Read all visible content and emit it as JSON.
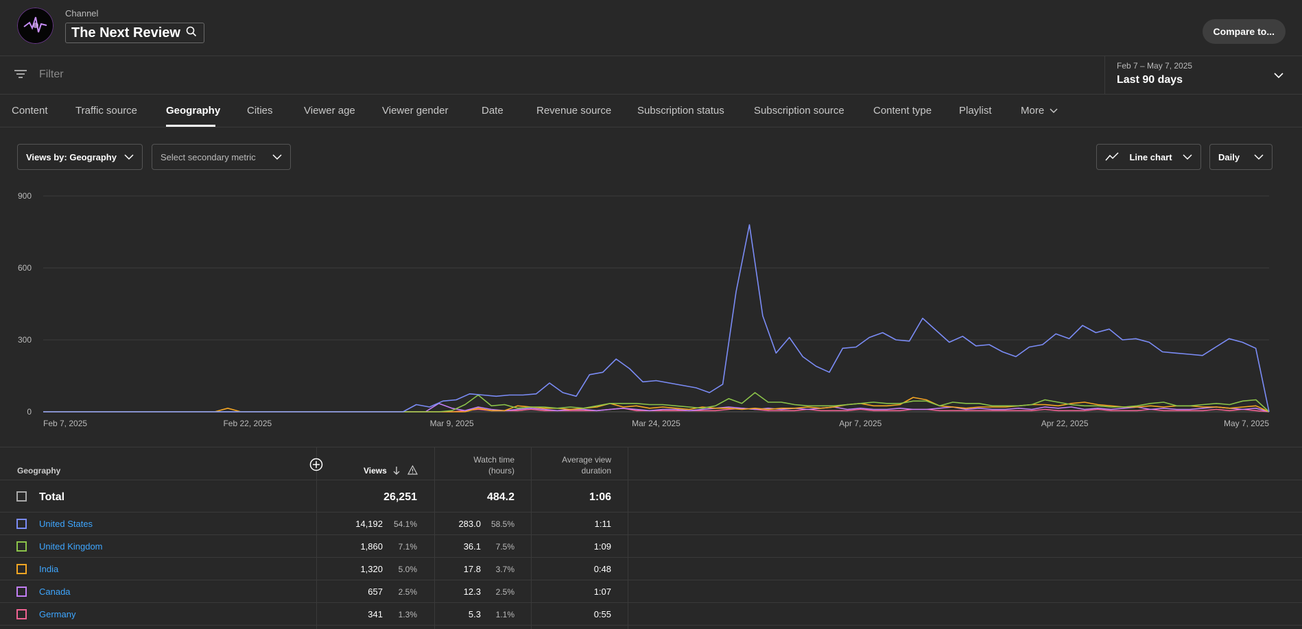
{
  "header": {
    "channel_label": "Channel",
    "channel_name": "The Next Review",
    "compare_label": "Compare to..."
  },
  "filter": {
    "placeholder": "Filter"
  },
  "date": {
    "range": "Feb 7 – May 7, 2025",
    "period": "Last 90 days"
  },
  "tabs": [
    "Content",
    "Traffic source",
    "Geography",
    "Cities",
    "Viewer age",
    "Viewer gender",
    "Date",
    "Revenue source",
    "Subscription status",
    "Subscription source",
    "Content type",
    "Playlist",
    "More"
  ],
  "controls": {
    "primary_metric": "Views by: Geography",
    "secondary_metric": "Select secondary metric",
    "chart_type": "Line chart",
    "granularity": "Daily"
  },
  "chart_data": {
    "type": "line",
    "y_ticks": [
      0,
      300,
      600,
      900
    ],
    "ylim": [
      0,
      900
    ],
    "x_ticks": [
      "Feb 7, 2025",
      "Feb 22, 2025",
      "Mar 9, 2025",
      "Mar 24, 2025",
      "Apr 7, 2025",
      "Apr 22, 2025",
      "May 7, 2025"
    ],
    "x_start": "Feb 7, 2025",
    "grid": true,
    "series": [
      {
        "name": "United States",
        "color": "#7b8cf6",
        "values": [
          0,
          0,
          0,
          0,
          0,
          0,
          0,
          0,
          0,
          0,
          0,
          0,
          0,
          0,
          0,
          0,
          0,
          0,
          0,
          0,
          0,
          0,
          0,
          0,
          0,
          0,
          0,
          0,
          30,
          20,
          45,
          50,
          75,
          70,
          65,
          70,
          70,
          75,
          120,
          80,
          65,
          155,
          165,
          220,
          180,
          125,
          130,
          120,
          110,
          100,
          80,
          115,
          500,
          780,
          400,
          245,
          310,
          230,
          190,
          165,
          265,
          270,
          310,
          330,
          300,
          295,
          390,
          340,
          290,
          315,
          275,
          280,
          250,
          230,
          270,
          280,
          325,
          305,
          360,
          330,
          345,
          300,
          305,
          290,
          250,
          245,
          240,
          235,
          270,
          305,
          290,
          265,
          0
        ]
      },
      {
        "name": "United Kingdom",
        "color": "#8bc34a",
        "values": [
          0,
          0,
          0,
          0,
          0,
          0,
          0,
          0,
          0,
          0,
          0,
          0,
          0,
          0,
          0,
          0,
          0,
          0,
          0,
          0,
          0,
          0,
          0,
          0,
          0,
          0,
          0,
          0,
          0,
          0,
          0,
          5,
          30,
          70,
          25,
          30,
          15,
          20,
          20,
          15,
          20,
          15,
          25,
          35,
          35,
          35,
          30,
          30,
          25,
          20,
          15,
          25,
          55,
          35,
          80,
          40,
          40,
          30,
          25,
          25,
          25,
          30,
          35,
          40,
          35,
          35,
          45,
          45,
          25,
          40,
          35,
          35,
          25,
          25,
          25,
          30,
          50,
          40,
          30,
          25,
          25,
          20,
          20,
          25,
          35,
          40,
          25,
          25,
          30,
          35,
          30,
          45,
          50,
          0
        ]
      },
      {
        "name": "India",
        "color": "#f5a623",
        "values": [
          0,
          0,
          0,
          0,
          0,
          0,
          0,
          0,
          0,
          0,
          0,
          0,
          0,
          0,
          15,
          0,
          0,
          0,
          0,
          0,
          0,
          0,
          0,
          0,
          0,
          0,
          0,
          0,
          0,
          0,
          0,
          0,
          0,
          15,
          5,
          5,
          25,
          20,
          15,
          15,
          10,
          15,
          20,
          35,
          20,
          25,
          15,
          20,
          15,
          10,
          20,
          15,
          15,
          10,
          15,
          10,
          15,
          15,
          20,
          15,
          20,
          30,
          35,
          25,
          25,
          30,
          60,
          50,
          25,
          20,
          15,
          20,
          20,
          20,
          25,
          30,
          30,
          25,
          35,
          40,
          30,
          25,
          20,
          20,
          25,
          20,
          25,
          25,
          20,
          20,
          15,
          20,
          25,
          0
        ]
      },
      {
        "name": "Canada",
        "color": "#c27ef5",
        "values": [
          0,
          0,
          0,
          0,
          0,
          0,
          0,
          0,
          0,
          0,
          0,
          0,
          0,
          0,
          0,
          0,
          0,
          0,
          0,
          0,
          0,
          0,
          0,
          0,
          0,
          0,
          0,
          0,
          0,
          0,
          35,
          15,
          5,
          20,
          10,
          5,
          10,
          15,
          10,
          5,
          10,
          10,
          5,
          10,
          15,
          10,
          5,
          10,
          10,
          5,
          10,
          15,
          20,
          15,
          10,
          15,
          10,
          15,
          10,
          15,
          20,
          10,
          15,
          10,
          10,
          15,
          10,
          10,
          15,
          20,
          10,
          15,
          10,
          10,
          15,
          10,
          20,
          15,
          20,
          10,
          15,
          10,
          15,
          20,
          10,
          15,
          10,
          10,
          15,
          20,
          15,
          10,
          15,
          0
        ]
      },
      {
        "name": "Germany",
        "color": "#f06292",
        "values": [
          0,
          0,
          0,
          0,
          0,
          0,
          0,
          0,
          0,
          0,
          0,
          0,
          0,
          0,
          0,
          0,
          0,
          0,
          0,
          0,
          0,
          0,
          0,
          0,
          0,
          0,
          0,
          0,
          0,
          0,
          0,
          0,
          5,
          10,
          5,
          5,
          5,
          10,
          5,
          5,
          5,
          5,
          5,
          10,
          15,
          5,
          5,
          5,
          5,
          5,
          5,
          5,
          10,
          15,
          10,
          5,
          5,
          5,
          10,
          5,
          5,
          5,
          10,
          5,
          5,
          5,
          10,
          10,
          5,
          5,
          5,
          5,
          5,
          5,
          5,
          5,
          10,
          5,
          5,
          5,
          10,
          5,
          5,
          5,
          10,
          5,
          5,
          5,
          5,
          10,
          5,
          10,
          5,
          0
        ]
      }
    ]
  },
  "table": {
    "headers": {
      "geography": "Geography",
      "views": "Views",
      "watch_time_1": "Watch time",
      "watch_time_2": "(hours)",
      "avg_1": "Average view",
      "avg_2": "duration"
    },
    "total": {
      "label": "Total",
      "views": "26,251",
      "watch": "484.2",
      "avg": "1:06"
    },
    "rows": [
      {
        "country": "United States",
        "color": "#7b8cf6",
        "views": "14,192",
        "views_pct": "54.1%",
        "watch": "283.0",
        "watch_pct": "58.5%",
        "avg": "1:11"
      },
      {
        "country": "United Kingdom",
        "color": "#8bc34a",
        "views": "1,860",
        "views_pct": "7.1%",
        "watch": "36.1",
        "watch_pct": "7.5%",
        "avg": "1:09"
      },
      {
        "country": "India",
        "color": "#f5a623",
        "views": "1,320",
        "views_pct": "5.0%",
        "watch": "17.8",
        "watch_pct": "3.7%",
        "avg": "0:48"
      },
      {
        "country": "Canada",
        "color": "#c27ef5",
        "views": "657",
        "views_pct": "2.5%",
        "watch": "12.3",
        "watch_pct": "2.5%",
        "avg": "1:07"
      },
      {
        "country": "Germany",
        "color": "#f06292",
        "views": "341",
        "views_pct": "1.3%",
        "watch": "5.3",
        "watch_pct": "1.1%",
        "avg": "0:55"
      }
    ]
  }
}
